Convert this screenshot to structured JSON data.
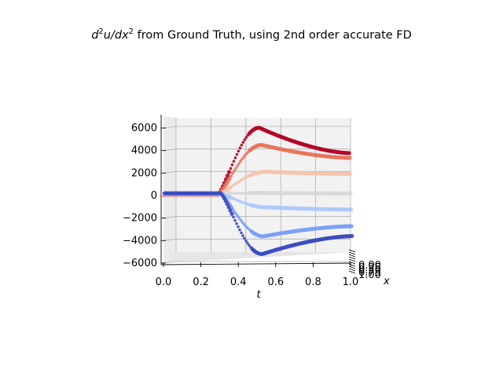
{
  "title_tex": {
    "lead": "d",
    "sup1": "2",
    "mid": "u/dx",
    "sup2": "2",
    "rest": " from Ground Truth, using 2nd order accurate FD"
  },
  "chart_data": {
    "type": "scatter",
    "subtype": "3d-scatter",
    "title": "d^2u/dx^2 from Ground Truth, using 2nd order accurate FD",
    "xlabel": "t",
    "ylabel": "x",
    "zlabel": "",
    "t_ticks": [
      "0.0",
      "0.2",
      "0.4",
      "0.6",
      "0.8",
      "1.0"
    ],
    "z_ticks": [
      "6000",
      "4000",
      "2000",
      "0",
      "−2000",
      "−4000",
      "−6000"
    ],
    "x_ticks_overlapping": [
      "0.00",
      "0.25",
      "0.50",
      "0.75",
      "1.00"
    ],
    "xlim": [
      0,
      1
    ],
    "zlim": [
      -6000,
      6000
    ],
    "grid": true,
    "colormap": "coolwarm",
    "series": [
      {
        "color": "#b40426",
        "peak_t": 0.52,
        "peak_z": 5950,
        "end_z": 3700
      },
      {
        "color": "#e7745b",
        "peak_t": 0.53,
        "peak_z": 4400,
        "end_z": 3250
      },
      {
        "color": "#f5c4ac",
        "peak_t": 0.55,
        "peak_z": 2000,
        "end_z": 1800
      },
      {
        "color": "#d9d9d9",
        "peak_t": 0.5,
        "peak_z": 100,
        "end_z": 50
      },
      {
        "color": "#aec9fc",
        "peak_t": 0.55,
        "peak_z": -1200,
        "end_z": -1400
      },
      {
        "color": "#7b9ff9",
        "peak_t": 0.53,
        "peak_z": -3800,
        "end_z": -2900
      },
      {
        "color": "#3b4cc0",
        "peak_t": 0.52,
        "peak_z": -5400,
        "end_z": -3800
      }
    ]
  }
}
